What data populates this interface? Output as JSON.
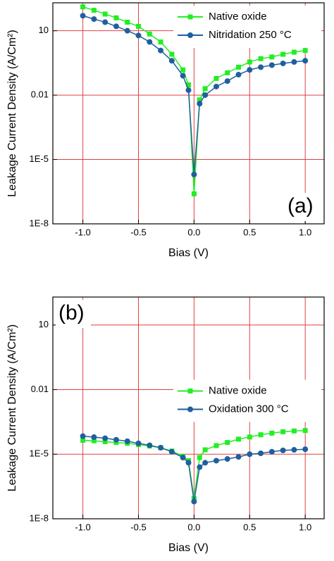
{
  "chart_data": [
    {
      "type": "line",
      "annotation": "(a)",
      "x_label": "Bias (V)",
      "y_label": "Leakage Current Density (A/Cm²)",
      "log_y": true,
      "grid": true,
      "legend": "upper right",
      "x": [
        -1.0,
        -0.9,
        -0.8,
        -0.7,
        -0.6,
        -0.5,
        -0.4,
        -0.3,
        -0.2,
        -0.1,
        -0.05,
        0,
        0.05,
        0.1,
        0.2,
        0.3,
        0.4,
        0.5,
        0.6,
        0.7,
        0.8,
        0.9,
        1.0
      ],
      "series": [
        {
          "name": "Native oxide",
          "color": "#22ee22",
          "marker": "square",
          "values": [
            130,
            90,
            60,
            40,
            25,
            16,
            7,
            3,
            0.8,
            0.15,
            0.03,
            2.5e-07,
            0.006,
            0.02,
            0.06,
            0.11,
            0.2,
            0.35,
            0.5,
            0.6,
            0.8,
            1,
            1.2
          ]
        },
        {
          "name": "Nitridation 250 °C",
          "color": "#1f5f9f",
          "marker": "circle",
          "values": [
            50,
            35,
            25,
            16,
            10,
            6,
            3,
            1.2,
            0.4,
            0.08,
            0.017,
            2e-06,
            0.004,
            0.01,
            0.025,
            0.045,
            0.09,
            0.15,
            0.2,
            0.25,
            0.3,
            0.35,
            0.4
          ]
        }
      ],
      "xlim": [
        -1.27,
        1.17
      ],
      "xticks": [
        {
          "value": -1,
          "label": "-1.0"
        },
        -0.5,
        {
          "value": 0,
          "label": "0.0"
        },
        0.5,
        {
          "value": 1,
          "label": "1.0"
        }
      ],
      "ylim": [
        1e-08,
        200
      ],
      "yticks": [
        {
          "value": 1e-08,
          "label": "1E-8"
        },
        {
          "value": 1e-05,
          "label": "1E-5"
        },
        0.01,
        10
      ]
    },
    {
      "type": "line",
      "annotation": "(b)",
      "x_label": "Bias (V)",
      "y_label": "Leakage Current Density (A/Cm²)",
      "log_y": true,
      "grid": true,
      "legend": "center right",
      "x": [
        -1.0,
        -0.9,
        -0.8,
        -0.7,
        -0.6,
        -0.5,
        -0.4,
        -0.3,
        -0.2,
        -0.1,
        -0.05,
        0,
        0.05,
        0.1,
        0.2,
        0.3,
        0.4,
        0.5,
        0.6,
        0.7,
        0.8,
        0.9,
        1.0
      ],
      "series": [
        {
          "name": "Native oxide",
          "color": "#22ee22",
          "marker": "square",
          "values": [
            4.4e-05,
            4.2e-05,
            3.8e-05,
            3.5e-05,
            3.2e-05,
            2.8e-05,
            2.4e-05,
            2e-05,
            1.4e-05,
            8e-06,
            5e-06,
            8.7e-08,
            7e-06,
            1.6e-05,
            2.5e-05,
            3.5e-05,
            5e-05,
            6.3e-05,
            8e-05,
            9.5e-05,
            0.00011,
            0.00012,
            0.000126
          ]
        },
        {
          "name": "Oxidation 300 °C",
          "color": "#1f5f9f",
          "marker": "circle",
          "values": [
            6.9e-05,
            6.2e-05,
            5.5e-05,
            4.7e-05,
            4e-05,
            3.2e-05,
            2.6e-05,
            2e-05,
            1.3e-05,
            7e-06,
            4e-06,
            6.3e-08,
            2.5e-06,
            4e-06,
            5e-06,
            6e-06,
            7.5e-06,
            1e-05,
            1.1e-05,
            1.3e-05,
            1.5e-05,
            1.6e-05,
            1.7e-05
          ]
        }
      ],
      "xlim": [
        -1.27,
        1.17
      ],
      "xticks": [
        {
          "value": -1,
          "label": "-1.0"
        },
        -0.5,
        {
          "value": 0,
          "label": "0.0"
        },
        0.5,
        {
          "value": 1,
          "label": "1.0"
        }
      ],
      "ylim": [
        1e-08,
        200
      ],
      "yticks": [
        {
          "value": 1e-08,
          "label": "1E-8"
        },
        {
          "value": 1e-05,
          "label": "1E-5"
        },
        0.01,
        10
      ]
    }
  ]
}
